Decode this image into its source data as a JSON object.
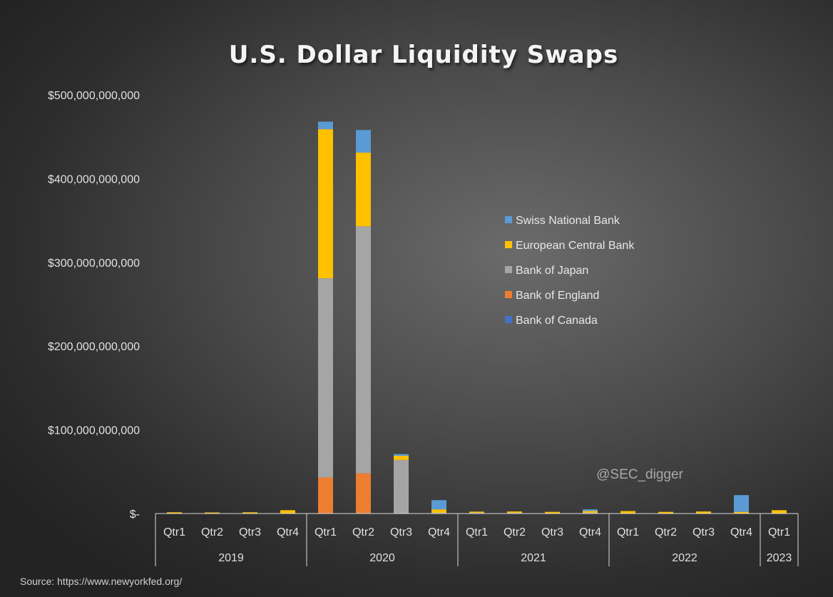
{
  "chart_data": {
    "type": "bar",
    "stacked": true,
    "title": "U.S. Dollar Liquidity Swaps",
    "watermark": "@SEC_digger",
    "source": "Source: https://www.newyorkfed.org/",
    "ylim": [
      0,
      500000000000
    ],
    "yticks": [
      {
        "value": 0,
        "label": "$-"
      },
      {
        "value": 100000000000,
        "label": "$100,000,000,000"
      },
      {
        "value": 200000000000,
        "label": "$200,000,000,000"
      },
      {
        "value": 300000000000,
        "label": "$300,000,000,000"
      },
      {
        "value": 400000000000,
        "label": "$400,000,000,000"
      },
      {
        "value": 500000000000,
        "label": "$500,000,000,000"
      }
    ],
    "categories": [
      "Qtr1",
      "Qtr2",
      "Qtr3",
      "Qtr4",
      "Qtr1",
      "Qtr2",
      "Qtr3",
      "Qtr4",
      "Qtr1",
      "Qtr2",
      "Qtr3",
      "Qtr4",
      "Qtr1",
      "Qtr2",
      "Qtr3",
      "Qtr4",
      "Qtr1"
    ],
    "groups": [
      {
        "label": "2019",
        "count": 4
      },
      {
        "label": "2020",
        "count": 4
      },
      {
        "label": "2021",
        "count": 4
      },
      {
        "label": "2022",
        "count": 4
      },
      {
        "label": "2023",
        "count": 1
      }
    ],
    "series": [
      {
        "name": "Bank of Canada",
        "color": "#4472c4",
        "values": [
          0,
          0,
          0,
          0,
          0,
          0,
          0,
          0,
          0,
          0,
          0,
          0,
          0,
          0,
          0,
          0,
          0
        ]
      },
      {
        "name": "Bank of England",
        "color": "#ed7d31",
        "values": [
          0,
          0,
          0,
          0,
          43000000000,
          48000000000,
          0,
          0,
          0,
          0,
          0,
          0,
          0,
          0,
          0,
          0,
          0
        ]
      },
      {
        "name": "Bank of Japan",
        "color": "#a5a5a5",
        "values": [
          0,
          0,
          0,
          0,
          238000000000,
          295000000000,
          64000000000,
          1000000000,
          1000000000,
          1000000000,
          0,
          1000000000,
          0,
          0,
          0,
          0,
          0
        ]
      },
      {
        "name": "European Central Bank",
        "color": "#ffc000",
        "values": [
          1500000000,
          1000000000,
          1500000000,
          4000000000,
          178000000000,
          88000000000,
          5000000000,
          4000000000,
          1000000000,
          1500000000,
          2000000000,
          2000000000,
          3000000000,
          2000000000,
          2500000000,
          2000000000,
          4000000000
        ]
      },
      {
        "name": "Swiss National Bank",
        "color": "#5b9bd5",
        "values": [
          0,
          0,
          0,
          0,
          9000000000,
          27000000000,
          2000000000,
          11000000000,
          0,
          0,
          0,
          2000000000,
          0,
          0,
          0,
          20000000000,
          0
        ]
      }
    ],
    "legend": {
      "placement": "right",
      "order": [
        "Swiss National Bank",
        "European Central Bank",
        "Bank of Japan",
        "Bank of England",
        "Bank of Canada"
      ]
    }
  }
}
